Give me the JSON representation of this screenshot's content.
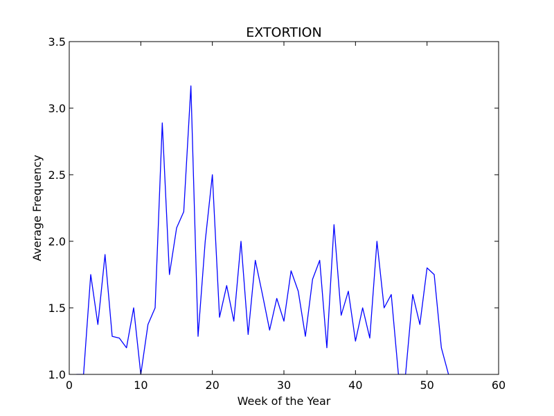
{
  "chart_data": {
    "type": "line",
    "title": "EXTORTION",
    "xlabel": "Week of the Year",
    "ylabel": "Average Frequency",
    "xlim": [
      0,
      60
    ],
    "ylim": [
      1.0,
      3.5
    ],
    "xticks": [
      0,
      10,
      20,
      30,
      40,
      50,
      60
    ],
    "yticks": [
      1.0,
      1.5,
      2.0,
      2.5,
      3.0,
      3.5
    ],
    "xtick_labels": [
      "0",
      "10",
      "20",
      "30",
      "40",
      "50",
      "60"
    ],
    "ytick_labels": [
      "1.0",
      "1.5",
      "2.0",
      "2.5",
      "3.0",
      "3.5"
    ],
    "grid": false,
    "series": [
      {
        "color": "#0000ff",
        "x": [
          1,
          2,
          3,
          4,
          5,
          6,
          7,
          8,
          9,
          10,
          11,
          12,
          13,
          14,
          15,
          16,
          17,
          18,
          19,
          20,
          21,
          22,
          23,
          24,
          25,
          26,
          27,
          28,
          29,
          30,
          31,
          32,
          33,
          34,
          35,
          36,
          37,
          38,
          39,
          40,
          41,
          42,
          43,
          44,
          45,
          46,
          47,
          48,
          49,
          50,
          51,
          52,
          53
        ],
        "y": [
          1.0,
          1.0,
          1.75,
          1.375,
          1.9,
          1.286,
          1.273,
          1.2,
          1.5,
          1.0,
          1.375,
          1.5,
          2.889,
          1.75,
          2.1,
          2.222,
          3.167,
          1.286,
          2.0,
          2.5,
          1.429,
          1.667,
          1.4,
          2.0,
          1.3,
          1.857,
          1.6,
          1.333,
          1.571,
          1.4,
          1.778,
          1.625,
          1.286,
          1.714,
          1.857,
          1.2,
          2.125,
          1.444,
          1.625,
          1.25,
          1.5,
          1.273,
          2.0,
          1.5,
          1.6,
          1.0,
          1.0,
          1.6,
          1.375,
          1.8,
          1.75,
          1.2,
          1.0
        ]
      }
    ]
  }
}
